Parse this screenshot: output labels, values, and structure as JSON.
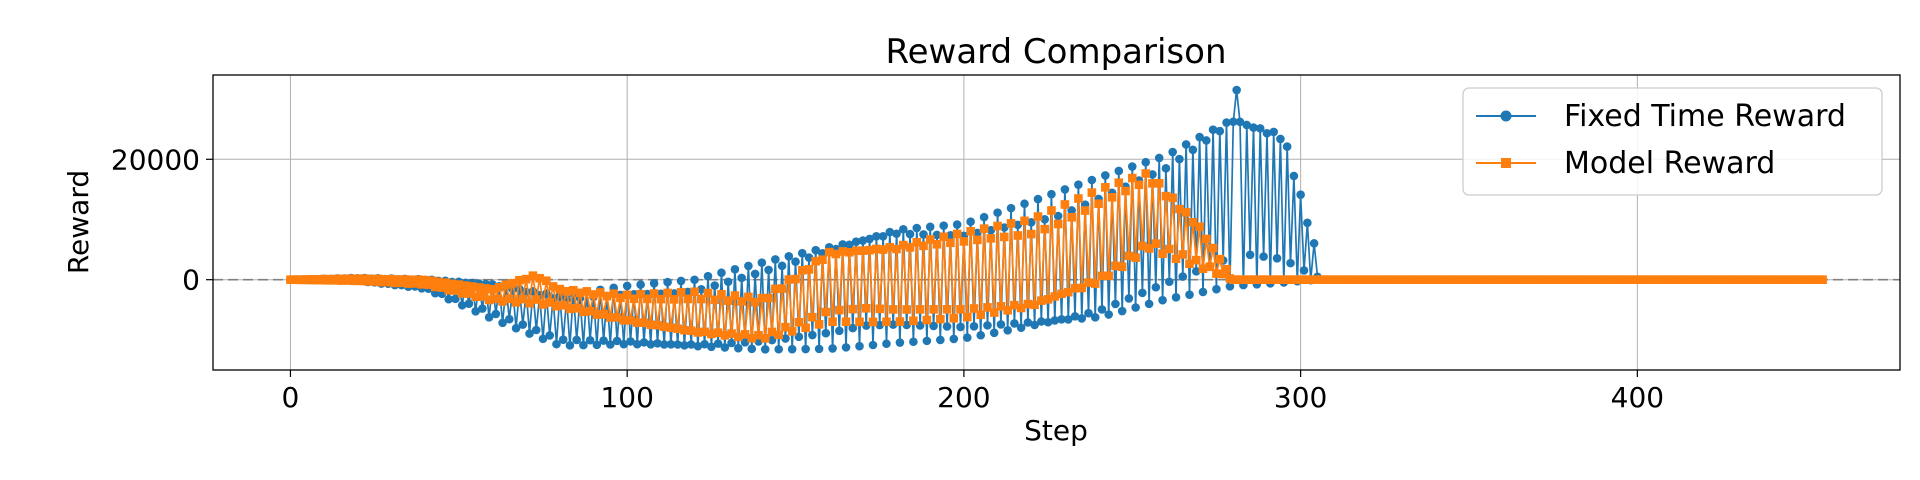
{
  "chart_data": {
    "type": "line",
    "title": "Reward Comparison",
    "xlabel": "Step",
    "ylabel": "Reward",
    "xlim": [
      -23,
      478
    ],
    "ylim": [
      -15000,
      34000
    ],
    "xticks": [
      0,
      100,
      200,
      300,
      400
    ],
    "yticks": [
      0,
      20000
    ],
    "xtick_labels": [
      "0",
      "100",
      "200",
      "300",
      "400"
    ],
    "ytick_labels": [
      "0",
      "20000"
    ],
    "grid": true,
    "zero_line": {
      "y": 0,
      "style": "dashed",
      "color": "#808080"
    },
    "legend": {
      "position": "top-right"
    },
    "series": [
      {
        "name": "Fixed Time Reward",
        "color": "#1f77b4",
        "marker": "circle",
        "x_start": 0,
        "n_points": 306,
        "envelope": {
          "knots_x": [
            0,
            20,
            40,
            60,
            80,
            100,
            120,
            140,
            160,
            180,
            200,
            220,
            240,
            260,
            280,
            295,
            306
          ],
          "upper": [
            0,
            300,
            100,
            -500,
            -2500,
            -1000,
            0,
            3000,
            6000,
            9000,
            9500,
            13000,
            17000,
            21000,
            28000,
            25000,
            2000
          ],
          "lower": [
            0,
            -200,
            -1500,
            -6500,
            -11000,
            -11000,
            -11500,
            -11800,
            -11500,
            -10500,
            -10000,
            -8500,
            -7000,
            -3500,
            -1000,
            -500,
            0
          ]
        },
        "max_point": {
          "x": 281,
          "y": 31500
        }
      },
      {
        "name": "Model Reward",
        "color": "#ff7f0e",
        "marker": "square",
        "x_start": 0,
        "n_points": 456,
        "envelope": {
          "knots_x": [
            0,
            20,
            40,
            60,
            73,
            80,
            100,
            120,
            140,
            160,
            180,
            200,
            220,
            240,
            255,
            270,
            280,
            455
          ],
          "upper": [
            0,
            200,
            0,
            -1500,
            1000,
            -1500,
            -2500,
            -2000,
            -3000,
            5000,
            6000,
            8000,
            10000,
            15000,
            18000,
            9000,
            0,
            0
          ],
          "lower": [
            0,
            -200,
            -800,
            -3500,
            -4000,
            -4500,
            -7000,
            -9000,
            -10000,
            -7000,
            -7000,
            -6500,
            -5000,
            -1000,
            5000,
            2000,
            0,
            0
          ]
        }
      }
    ]
  }
}
